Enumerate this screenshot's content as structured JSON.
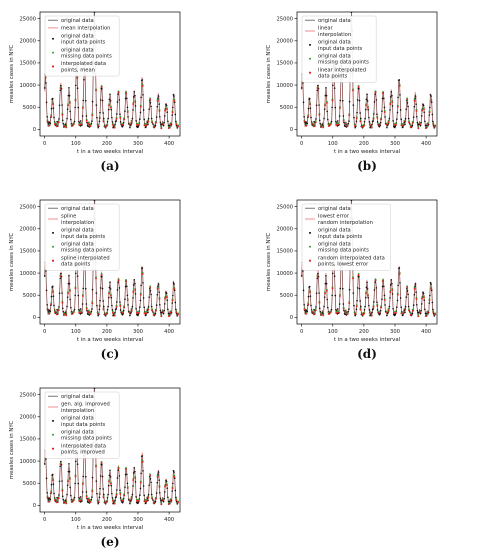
{
  "colors": {
    "original": "#555555",
    "interp_line": "#f08080",
    "input_pts": "#111111",
    "missing_pts": "#2ca02c",
    "interp_pts": "#e8231f"
  },
  "chart_data": [
    {
      "type": "line",
      "panel_label": "(a)",
      "xlabel": "t in a two weeks interval",
      "ylabel": "measles cases in NYC",
      "xlim": [
        -15,
        435
      ],
      "ylim": [
        -1500,
        26500
      ],
      "xticks": [
        0,
        100,
        200,
        300,
        400
      ],
      "yticks": [
        0,
        5000,
        10000,
        15000,
        20000,
        25000
      ],
      "legend_position": "top-left",
      "legend": [
        "original data",
        "mean interpolation",
        "original data\ninput data points",
        "original data\nmissing data points",
        "interpolated data\npoints, mean"
      ]
    },
    {
      "type": "line",
      "panel_label": "(b)",
      "xlabel": "t in a two weeks interval",
      "ylabel": "measles cases in NYC",
      "xlim": [
        -15,
        435
      ],
      "ylim": [
        -1500,
        26500
      ],
      "xticks": [
        0,
        100,
        200,
        300,
        400
      ],
      "yticks": [
        0,
        5000,
        10000,
        15000,
        20000,
        25000
      ],
      "legend_position": "top-left",
      "legend": [
        "original data",
        "linear\ninterpolation",
        "original data\ninput data points",
        "original data\nmissing data points",
        "linear interpolated\ndata points"
      ]
    },
    {
      "type": "line",
      "panel_label": "(c)",
      "xlabel": "t in a two weeks interval",
      "ylabel": "measles cases in NYC",
      "xlim": [
        -15,
        435
      ],
      "ylim": [
        -1500,
        26500
      ],
      "xticks": [
        0,
        100,
        200,
        300,
        400
      ],
      "yticks": [
        0,
        5000,
        10000,
        15000,
        20000,
        25000
      ],
      "legend_position": "top-left",
      "legend": [
        "original data",
        "spline\ninterpolation",
        "original data\ninput data points",
        "original data\nmissing data points",
        "spline interpolated\ndata points"
      ]
    },
    {
      "type": "line",
      "panel_label": "(d)",
      "xlabel": "t in a two weeks interval",
      "ylabel": "measles cases in NYC",
      "xlim": [
        -15,
        435
      ],
      "ylim": [
        -1500,
        26500
      ],
      "xticks": [
        0,
        100,
        200,
        300,
        400
      ],
      "yticks": [
        0,
        5000,
        10000,
        15000,
        20000,
        25000
      ],
      "legend_position": "top-left",
      "legend": [
        "original data",
        "lowest error\nrandom interpolation",
        "original data\ninput data points",
        "original data\nmissing data points",
        "random interpolated data\npoints, lowest error"
      ]
    },
    {
      "type": "line",
      "panel_label": "(e)",
      "xlabel": "t in a two weeks interval",
      "ylabel": "measles cases in NYC",
      "xlim": [
        -15,
        435
      ],
      "ylim": [
        -1500,
        26500
      ],
      "xticks": [
        0,
        100,
        200,
        300,
        400
      ],
      "yticks": [
        0,
        5000,
        10000,
        15000,
        20000,
        25000
      ],
      "legend_position": "top-left",
      "legend": [
        "original data",
        "gen. alg. improved\ninterpolation",
        "original data\ninput data points",
        "original data\nmissing data points",
        "interpolated data\npoints, improved"
      ]
    }
  ],
  "series_peaks": [
    [
      2,
      11000
    ],
    [
      25,
      6000
    ],
    [
      52,
      9500
    ],
    [
      78,
      7800
    ],
    [
      103,
      13800
    ],
    [
      128,
      12800
    ],
    [
      160,
      25500
    ],
    [
      183,
      8600
    ],
    [
      210,
      7300
    ],
    [
      237,
      8000
    ],
    [
      262,
      8000
    ],
    [
      288,
      7600
    ],
    [
      313,
      10700
    ],
    [
      339,
      5700
    ],
    [
      365,
      6700
    ],
    [
      390,
      5200
    ],
    [
      415,
      7000
    ]
  ]
}
